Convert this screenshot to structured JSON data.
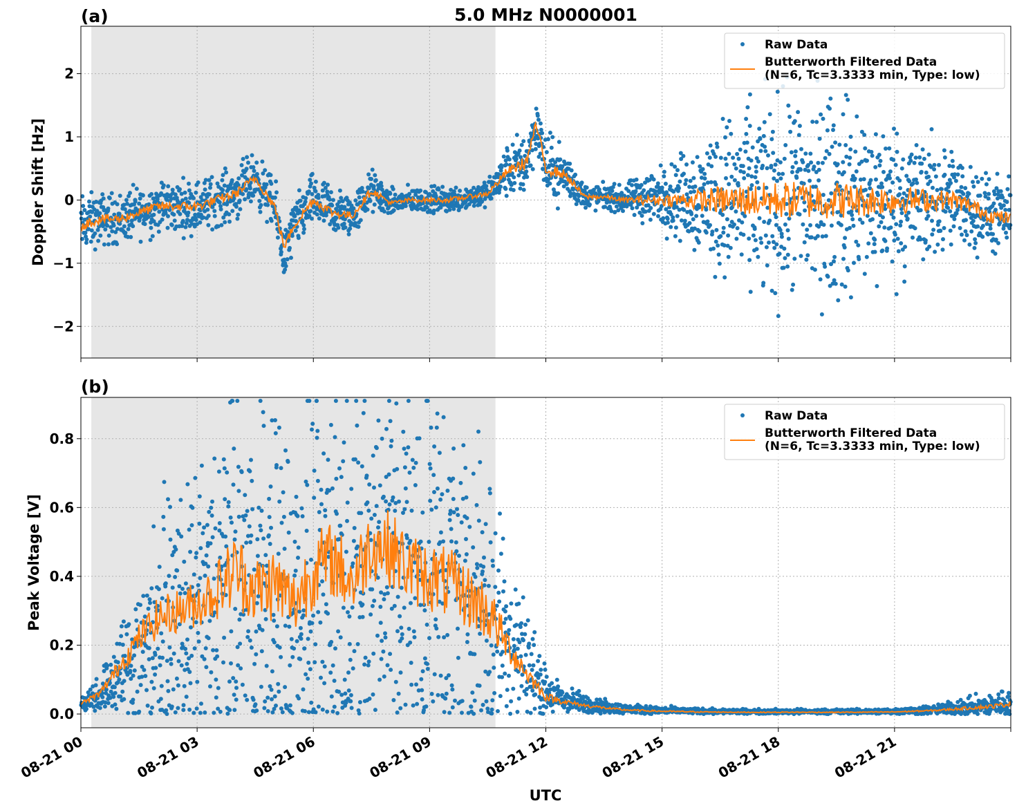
{
  "figure": {
    "title": "5.0 MHz N0000001",
    "xlabel": "UTC",
    "x_tick_labels": [
      "08-21 00",
      "08-21 03",
      "08-21 06",
      "08-21 09",
      "08-21 12",
      "08-21 15",
      "08-21 18",
      "08-21 21"
    ]
  },
  "colors": {
    "raw": "#1f77b4",
    "filtered": "#ff7f0e",
    "shade": "#e6e6e6"
  },
  "chart_data": [
    {
      "type": "scatter",
      "panel_label": "(a)",
      "ylabel": "Doppler Shift [Hz]",
      "xlim_hours": [
        0,
        24
      ],
      "ylim": [
        -2.5,
        2.75
      ],
      "y_ticks": [
        -2,
        -1,
        0,
        1,
        2
      ],
      "y_tick_labels": [
        "−2",
        "−1",
        "0",
        "1",
        "2"
      ],
      "shaded_interval_hours": [
        0.27,
        10.7
      ],
      "grid": true,
      "legend_placement": "upper right",
      "series": [
        {
          "name": "Raw Data",
          "kind": "points",
          "x_hours": [
            0,
            0.5,
            1,
            1.5,
            2,
            2.5,
            3,
            3.5,
            4,
            4.5,
            5,
            5.25,
            5.5,
            6,
            6.5,
            7,
            7.5,
            8,
            8.5,
            9,
            9.5,
            10,
            10.5,
            11,
            11.5,
            11.75,
            12,
            12.5,
            13,
            13.5,
            14,
            14.5,
            15,
            15.5,
            16,
            16.5,
            17,
            17.5,
            18,
            18.5,
            19,
            19.5,
            20,
            20.5,
            21,
            21.5,
            22,
            22.5,
            23,
            23.5,
            24
          ],
          "center": [
            -0.4,
            -0.3,
            -0.3,
            -0.2,
            -0.1,
            -0.1,
            -0.1,
            0.0,
            0.1,
            0.35,
            -0.1,
            -0.9,
            -0.4,
            0.0,
            -0.2,
            -0.25,
            0.15,
            -0.05,
            0.0,
            0.0,
            0.0,
            0.05,
            0.1,
            0.45,
            0.6,
            1.2,
            0.5,
            0.4,
            0.05,
            0.05,
            0.0,
            0.05,
            0.05,
            0.05,
            0.05,
            0.05,
            0.05,
            0.0,
            0.0,
            0.05,
            0.05,
            0.05,
            0.0,
            0.0,
            0.0,
            0.0,
            0.0,
            0.0,
            -0.1,
            -0.25,
            -0.3
          ],
          "spread": [
            0.35,
            0.3,
            0.3,
            0.3,
            0.3,
            0.3,
            0.3,
            0.3,
            0.3,
            0.3,
            0.3,
            0.3,
            0.3,
            0.3,
            0.3,
            0.25,
            0.25,
            0.15,
            0.15,
            0.15,
            0.15,
            0.15,
            0.15,
            0.3,
            0.4,
            0.3,
            0.4,
            0.3,
            0.15,
            0.15,
            0.15,
            0.3,
            0.35,
            0.5,
            0.7,
            0.9,
            1.0,
            1.1,
            1.2,
            1.2,
            1.2,
            1.2,
            1.1,
            1.0,
            0.9,
            0.8,
            0.7,
            0.6,
            0.5,
            0.45,
            0.4
          ]
        },
        {
          "name": "Butterworth Filtered Data\n(N=6, Tc=3.3333 min, Type: low)",
          "kind": "line",
          "x_hours": [
            0,
            0.5,
            1,
            1.5,
            2,
            2.5,
            3,
            3.5,
            4,
            4.5,
            5,
            5.25,
            5.5,
            6,
            6.5,
            7,
            7.5,
            8,
            8.5,
            9,
            9.5,
            10,
            10.5,
            11,
            11.5,
            11.75,
            12,
            12.5,
            13,
            13.5,
            14,
            14.5,
            15,
            15.5,
            16,
            16.5,
            17,
            17.5,
            18,
            18.5,
            19,
            19.5,
            20,
            20.5,
            21,
            21.5,
            22,
            22.5,
            23,
            23.5,
            24
          ],
          "y": [
            -0.4,
            -0.3,
            -0.3,
            -0.2,
            -0.1,
            -0.1,
            -0.1,
            0.0,
            0.1,
            0.35,
            -0.1,
            -0.75,
            -0.4,
            0.0,
            -0.2,
            -0.25,
            0.15,
            -0.05,
            0.0,
            0.0,
            0.0,
            0.05,
            0.1,
            0.45,
            0.6,
            1.2,
            0.5,
            0.4,
            0.05,
            0.05,
            0.0,
            0.0,
            0.0,
            0.0,
            0.0,
            0.0,
            0.0,
            0.0,
            0.0,
            0.0,
            0.0,
            0.0,
            0.0,
            0.0,
            0.0,
            0.0,
            0.0,
            0.0,
            -0.1,
            -0.25,
            -0.3
          ]
        }
      ]
    },
    {
      "type": "scatter",
      "panel_label": "(b)",
      "ylabel": "Peak Voltage [V]",
      "xlim_hours": [
        0,
        24
      ],
      "ylim": [
        -0.04,
        0.92
      ],
      "y_ticks": [
        0.0,
        0.2,
        0.4,
        0.6,
        0.8
      ],
      "y_tick_labels": [
        "0.0",
        "0.2",
        "0.4",
        "0.6",
        "0.8"
      ],
      "shaded_interval_hours": [
        0.27,
        10.7
      ],
      "grid": true,
      "legend_placement": "upper right",
      "series": [
        {
          "name": "Raw Data",
          "kind": "points",
          "x_hours": [
            0,
            0.5,
            1,
            1.5,
            2,
            2.5,
            3,
            3.5,
            4,
            4.5,
            5,
            5.5,
            6,
            6.5,
            7,
            7.5,
            8,
            8.5,
            9,
            9.5,
            10,
            10.5,
            11,
            11.5,
            12,
            12.5,
            13,
            13.5,
            14,
            14.5,
            15,
            16,
            17,
            18,
            19,
            20,
            21,
            22,
            23,
            23.5,
            24
          ],
          "center": [
            0.03,
            0.06,
            0.12,
            0.18,
            0.24,
            0.26,
            0.28,
            0.32,
            0.38,
            0.32,
            0.35,
            0.3,
            0.4,
            0.42,
            0.35,
            0.45,
            0.45,
            0.4,
            0.38,
            0.36,
            0.32,
            0.3,
            0.22,
            0.15,
            0.06,
            0.04,
            0.03,
            0.02,
            0.015,
            0.012,
            0.01,
            0.008,
            0.007,
            0.007,
            0.007,
            0.007,
            0.008,
            0.012,
            0.02,
            0.025,
            0.035
          ],
          "spread": [
            0.02,
            0.04,
            0.1,
            0.18,
            0.24,
            0.26,
            0.28,
            0.35,
            0.45,
            0.4,
            0.45,
            0.4,
            0.45,
            0.45,
            0.42,
            0.45,
            0.45,
            0.42,
            0.42,
            0.42,
            0.38,
            0.36,
            0.2,
            0.12,
            0.05,
            0.03,
            0.02,
            0.015,
            0.01,
            0.01,
            0.008,
            0.006,
            0.005,
            0.005,
            0.005,
            0.005,
            0.006,
            0.01,
            0.02,
            0.025,
            0.03
          ]
        },
        {
          "name": "Butterworth Filtered Data\n(N=6, Tc=3.3333 min, Type: low)",
          "kind": "line",
          "x_hours": [
            0,
            0.5,
            1,
            1.5,
            2,
            2.5,
            3,
            3.5,
            4,
            4.5,
            5,
            5.5,
            6,
            6.5,
            7,
            7.5,
            8,
            8.5,
            9,
            9.5,
            10,
            10.5,
            11,
            11.5,
            12,
            12.5,
            13,
            13.5,
            14,
            14.5,
            15,
            16,
            17,
            18,
            19,
            20,
            21,
            22,
            23,
            23.5,
            24
          ],
          "y": [
            0.03,
            0.06,
            0.14,
            0.22,
            0.28,
            0.3,
            0.32,
            0.36,
            0.42,
            0.36,
            0.38,
            0.32,
            0.42,
            0.45,
            0.38,
            0.5,
            0.48,
            0.42,
            0.4,
            0.38,
            0.34,
            0.3,
            0.2,
            0.12,
            0.05,
            0.035,
            0.025,
            0.018,
            0.012,
            0.01,
            0.008,
            0.006,
            0.005,
            0.005,
            0.005,
            0.005,
            0.006,
            0.01,
            0.018,
            0.022,
            0.03
          ]
        }
      ]
    }
  ]
}
